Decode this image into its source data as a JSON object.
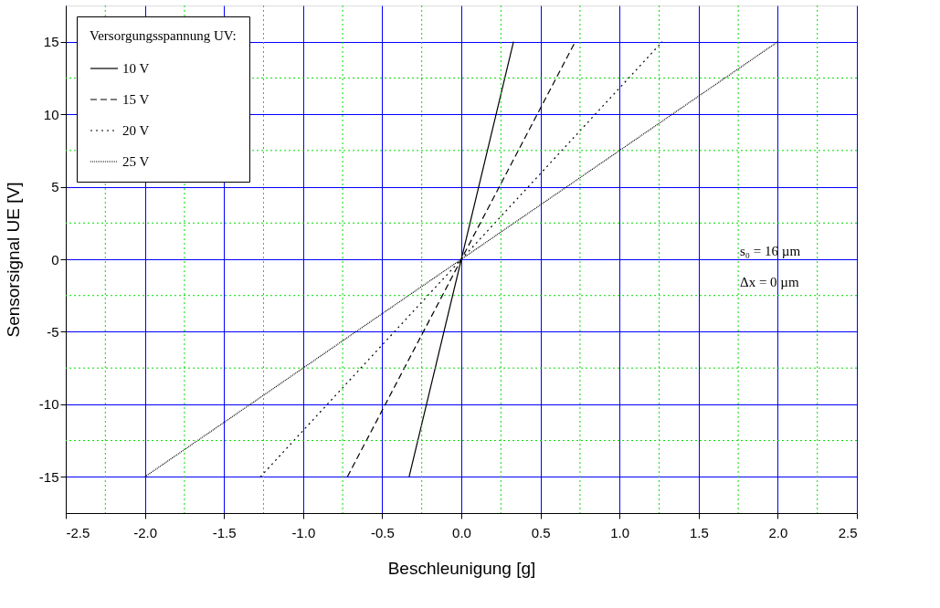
{
  "chart_data": {
    "type": "line",
    "xlabel": "Beschleunigung [g]",
    "ylabel": "Sensorsignal UE  [V]",
    "legend_title": "Versorgungsspannung UV:",
    "xlim": [
      -2.5,
      2.5
    ],
    "ylim": [
      -17.5,
      17.5
    ],
    "xticks": [
      {
        "value": -2.5,
        "label": "-2.5"
      },
      {
        "value": -2.25,
        "label": null
      },
      {
        "value": -2.0,
        "label": "-2.0"
      },
      {
        "value": -1.75,
        "label": null
      },
      {
        "value": -1.5,
        "label": "-1.5"
      },
      {
        "value": -1.25,
        "label": null
      },
      {
        "value": -1.0,
        "label": "-1.0"
      },
      {
        "value": -0.75,
        "label": null
      },
      {
        "value": -0.5,
        "label": "-0.5"
      },
      {
        "value": -0.25,
        "label": null
      },
      {
        "value": 0.0,
        "label": "0.0"
      },
      {
        "value": 0.25,
        "label": null
      },
      {
        "value": 0.5,
        "label": "0.5"
      },
      {
        "value": 0.75,
        "label": null
      },
      {
        "value": 1.0,
        "label": "1.0"
      },
      {
        "value": 1.25,
        "label": null
      },
      {
        "value": 1.5,
        "label": "1.5"
      },
      {
        "value": 1.75,
        "label": null
      },
      {
        "value": 2.0,
        "label": "2.0"
      },
      {
        "value": 2.25,
        "label": null
      },
      {
        "value": 2.5,
        "label": "2.5"
      }
    ],
    "yticks": [
      {
        "value": -15,
        "label": "-15"
      },
      {
        "value": -12.5,
        "label": null
      },
      {
        "value": -10,
        "label": "-10"
      },
      {
        "value": -7.5,
        "label": null
      },
      {
        "value": -5,
        "label": "-5"
      },
      {
        "value": -2.5,
        "label": null
      },
      {
        "value": 0,
        "label": "0"
      },
      {
        "value": 2.5,
        "label": null
      },
      {
        "value": 5,
        "label": "5"
      },
      {
        "value": 7.5,
        "label": null
      },
      {
        "value": 10,
        "label": "10"
      },
      {
        "value": 12.5,
        "label": null
      },
      {
        "value": 15,
        "label": "15"
      }
    ],
    "grid": true,
    "legend": "top left",
    "marker": "none",
    "annotations": [
      "s₀ = 16 µm",
      "Δx = 0 µm"
    ],
    "series": [
      {
        "name": "10 V",
        "color": "#000000",
        "line_style": "solid",
        "x": [
          -0.33,
          0.33
        ],
        "values": [
          -15,
          15
        ]
      },
      {
        "name": "15 V",
        "color": "#000000",
        "line_style": "dashed",
        "x": [
          -0.72,
          0.72
        ],
        "values": [
          -15,
          15
        ]
      },
      {
        "name": "20 V",
        "color": "#000000",
        "line_style": "dotted",
        "x": [
          -1.27,
          1.27
        ],
        "values": [
          -15,
          15
        ]
      },
      {
        "name": "25 V",
        "color": "#000000",
        "line_style": "dotted",
        "x": [
          -2.0,
          2.0
        ],
        "values": [
          -15,
          15
        ]
      }
    ]
  }
}
